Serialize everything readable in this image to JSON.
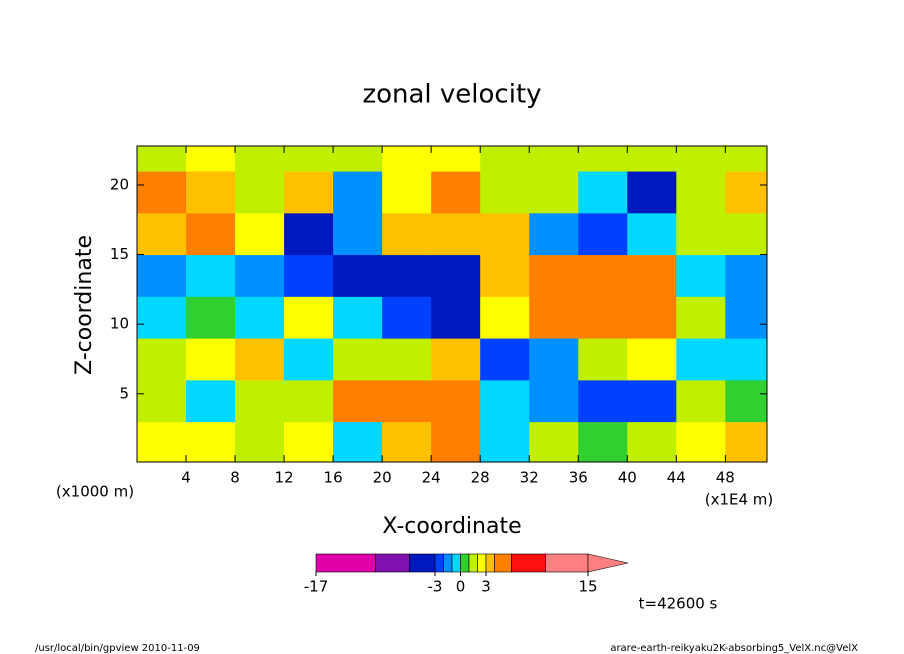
{
  "chart_data": {
    "type": "contour",
    "title": "zonal velocity",
    "x_label": "X-coordinate",
    "y_label": "Z-coordinate",
    "x_unit": "(x1E4 m)",
    "y_unit": "(x1000 m)",
    "time_label": "t=42600 s",
    "footer_left": "/usr/local/bin/gpview   2010-11-09",
    "footer_right": "arare-earth-reikyaku2K-absorbing5_VelX.nc@VelX",
    "xlim": [
      0,
      51.4
    ],
    "ylim": [
      0.1,
      22.8
    ],
    "xticks": [
      4,
      8,
      12,
      16,
      20,
      24,
      28,
      32,
      36,
      40,
      44,
      48
    ],
    "yticks": [
      5,
      10,
      15,
      20
    ],
    "x_bins": [
      0,
      4,
      8,
      12,
      16,
      20,
      24,
      28,
      32,
      36,
      40,
      44,
      48,
      52
    ],
    "y_bins": [
      0,
      3,
      6,
      9,
      12,
      15,
      18,
      21,
      24
    ],
    "values": [
      [
        2,
        2,
        1,
        2,
        -1,
        3,
        4,
        -1,
        1,
        0,
        1,
        2,
        3
      ],
      [
        1,
        -1,
        1,
        1,
        4,
        5,
        4,
        -1,
        -2,
        -3,
        -3,
        1,
        0
      ],
      [
        1,
        2,
        3,
        -1,
        1,
        1,
        3,
        -3,
        -2,
        1,
        2,
        -1,
        -1
      ],
      [
        -1,
        0,
        -1,
        2,
        -1,
        -3,
        -5,
        2,
        5,
        4,
        5,
        1,
        -2
      ],
      [
        -2,
        -1,
        -2,
        -3,
        -6,
        -6,
        -6,
        3,
        5,
        5,
        4,
        -1,
        -2
      ],
      [
        3,
        4,
        2,
        -4,
        -2,
        3,
        3,
        3,
        -2,
        -3,
        -1,
        1,
        1
      ],
      [
        4,
        3,
        1,
        3,
        -2,
        2,
        4,
        1,
        1,
        -1,
        -5,
        1,
        3
      ],
      [
        1,
        2,
        1,
        1,
        1,
        2,
        2,
        1,
        1,
        1,
        1,
        1,
        1
      ]
    ],
    "levels": [
      -17,
      -10,
      -6,
      -3,
      -2,
      -1,
      0,
      1,
      2,
      3,
      4,
      6,
      10,
      15
    ],
    "colors": [
      "#e000a8",
      "#8010b0",
      "#0018c0",
      "#0040ff",
      "#0090ff",
      "#00d8ff",
      "#30d030",
      "#c0f000",
      "#ffff00",
      "#ffc000",
      "#ff8000",
      "#ff1010",
      "#ff8080"
    ],
    "extend": "max",
    "colorbar_ticks": [
      -17,
      -3,
      0,
      3,
      15
    ]
  }
}
